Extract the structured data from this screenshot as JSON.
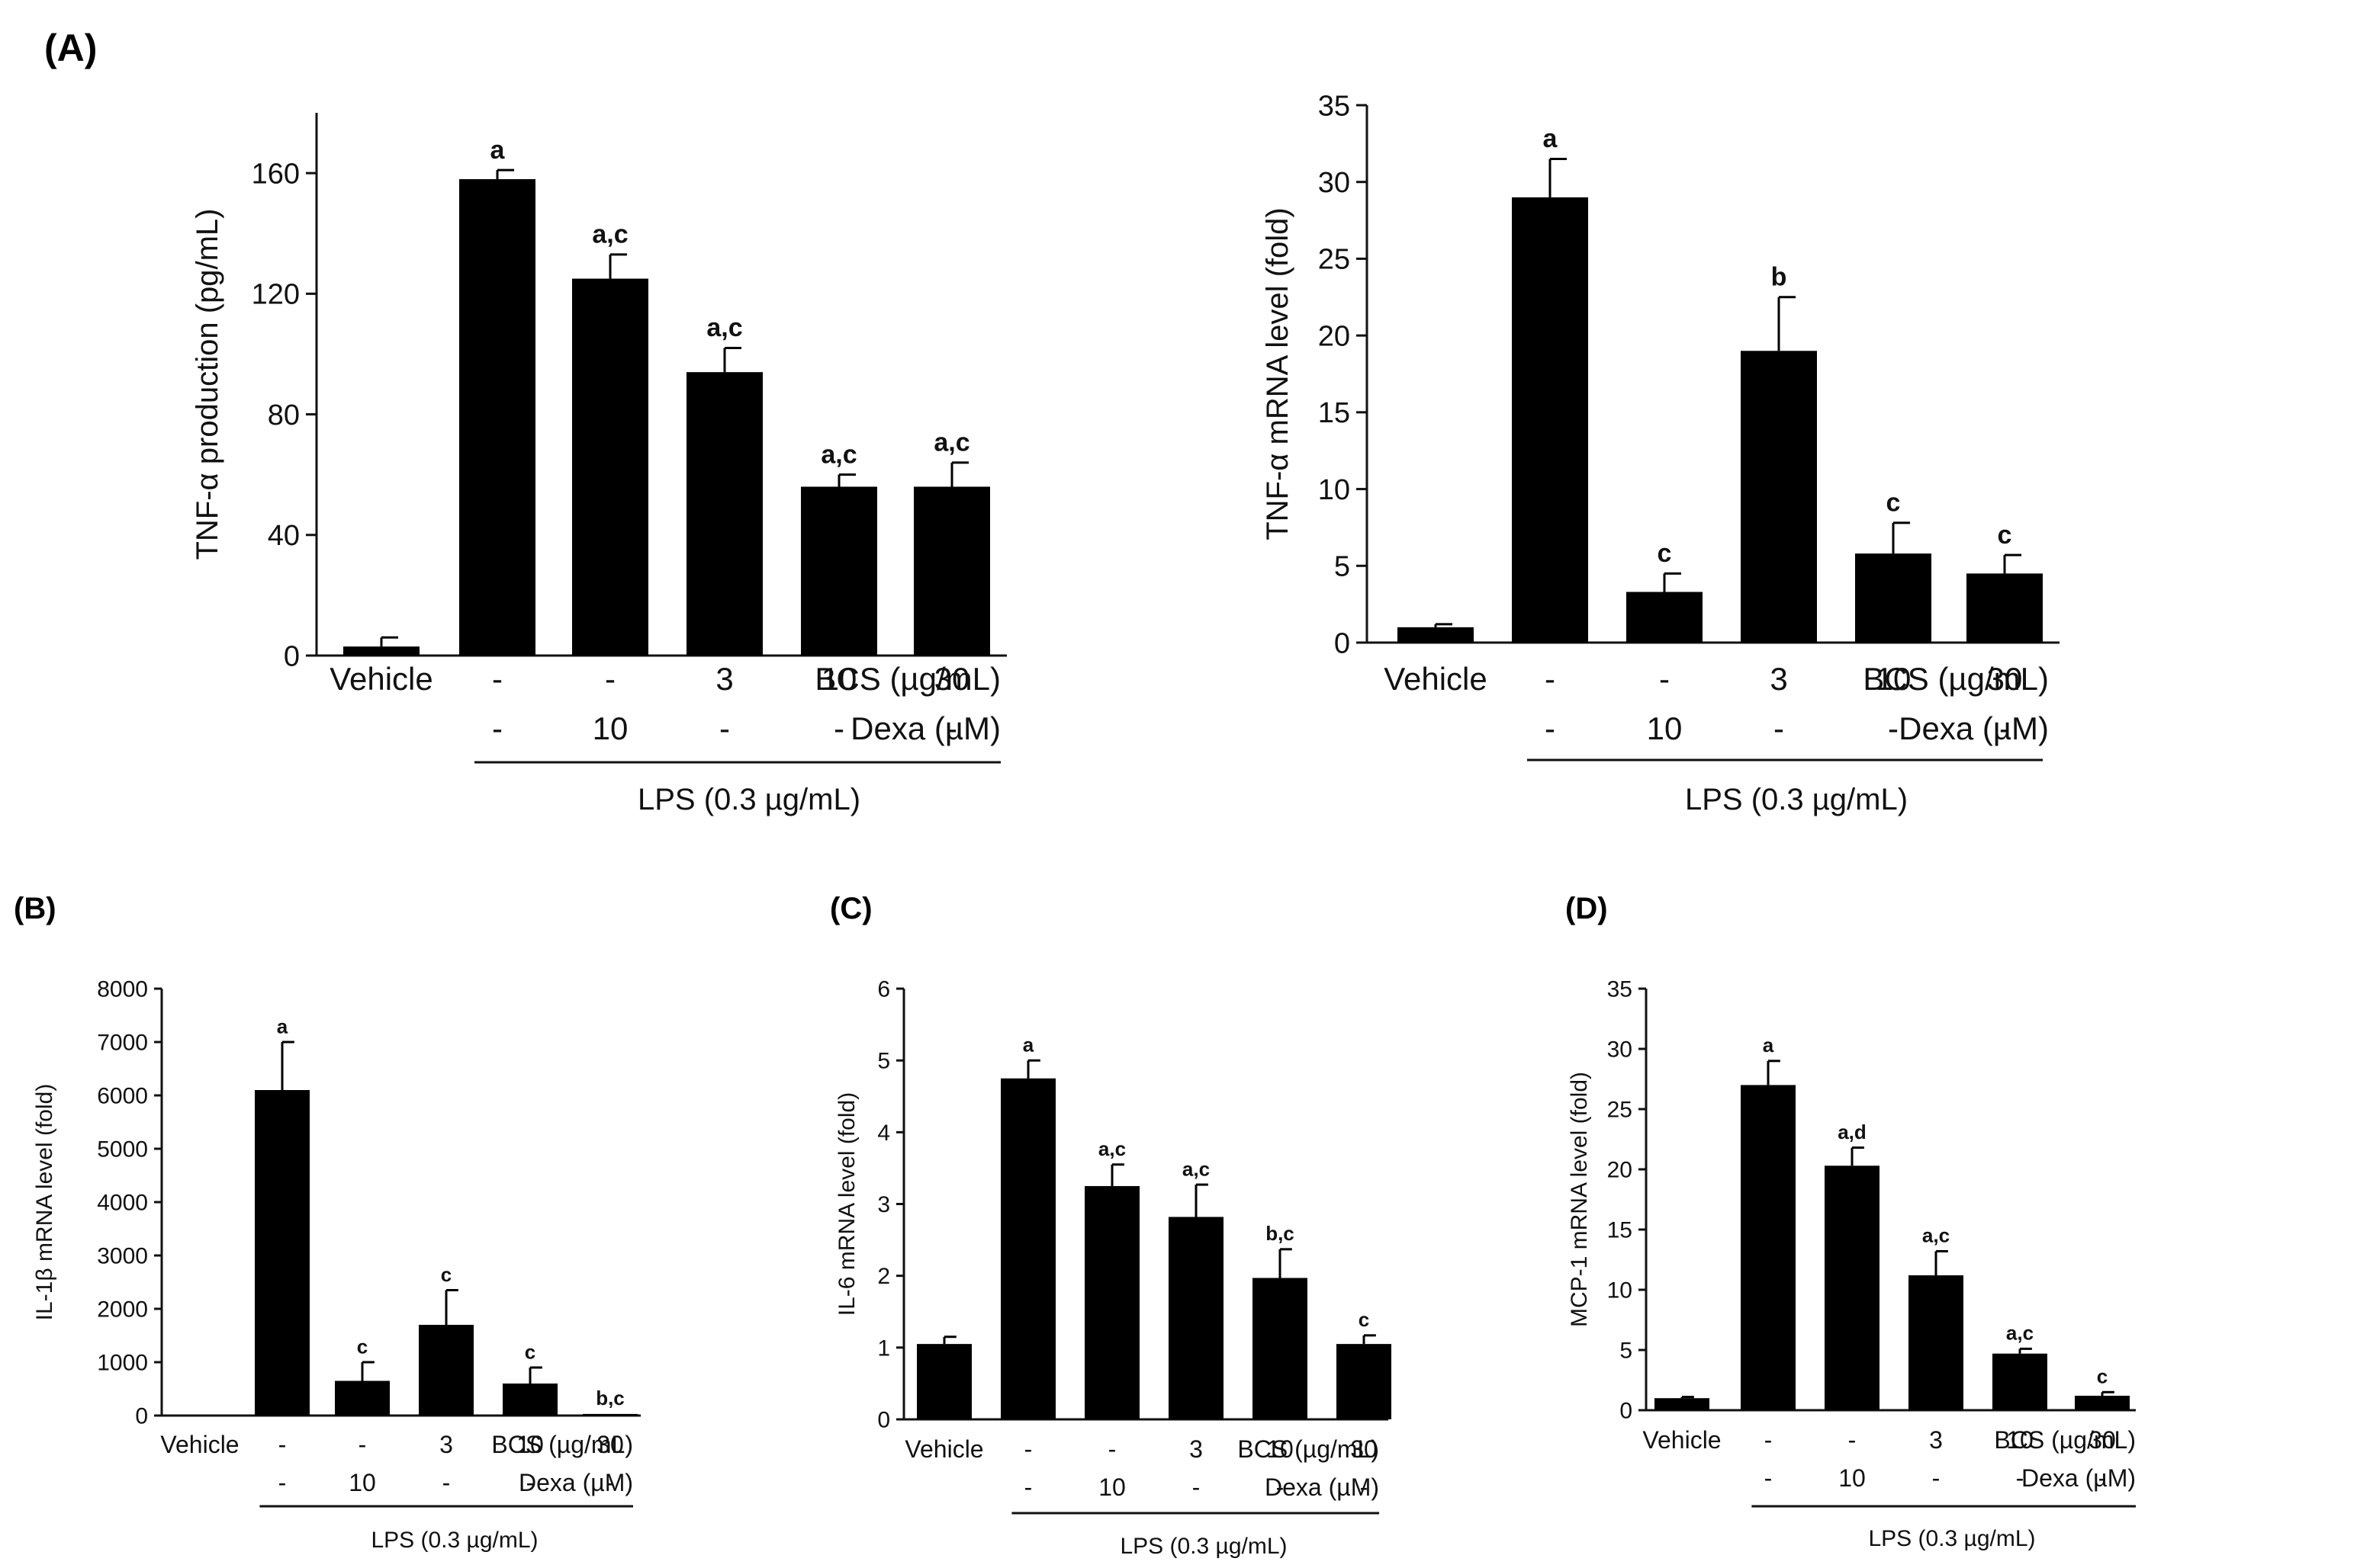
{
  "figure_labels": {
    "A": "(A)",
    "B": "(B)",
    "C": "(C)",
    "D": "(D)"
  },
  "chart_data": [
    {
      "id": "A1",
      "panel": "(A)",
      "type": "bar",
      "ylabel": "TNF-α production (pg/mL)",
      "ylim": [
        0,
        180
      ],
      "yticks": [
        0,
        40,
        80,
        120,
        160
      ],
      "categories": [
        "Vehicle",
        "-",
        "-",
        "3",
        "10",
        "30"
      ],
      "values": [
        3,
        158,
        125,
        94,
        56,
        56
      ],
      "errors": [
        3,
        3,
        8,
        8,
        4,
        8
      ],
      "sig_labels": [
        "",
        "a",
        "a,c",
        "a,c",
        "a,c",
        "a,c"
      ],
      "row1_suffix": "BCS (µg/mL)",
      "row2": [
        "",
        "-",
        "10",
        "-",
        "-",
        "-"
      ],
      "row2_suffix": "Dexa (µM)",
      "lps_label": "LPS (0.3 µg/mL)"
    },
    {
      "id": "A2",
      "panel": "(A)",
      "type": "bar",
      "ylabel": "TNF-α mRNA level (fold)",
      "ylim": [
        0,
        35
      ],
      "yticks": [
        0,
        5,
        10,
        15,
        20,
        25,
        30,
        35
      ],
      "categories": [
        "Vehicle",
        "-",
        "-",
        "3",
        "10",
        "30"
      ],
      "values": [
        1,
        29,
        3.3,
        19,
        5.8,
        4.5
      ],
      "errors": [
        0.2,
        2.5,
        1.2,
        3.5,
        2.0,
        1.2
      ],
      "sig_labels": [
        "",
        "a",
        "c",
        "b",
        "c",
        "c"
      ],
      "row1_suffix": "BCS (µg/mL)",
      "row2": [
        "",
        "-",
        "10",
        "-",
        "-",
        "-"
      ],
      "row2_suffix": "Dexa (µM)",
      "lps_label": "LPS (0.3 µg/mL)"
    },
    {
      "id": "B",
      "panel": "(B)",
      "type": "bar",
      "ylabel": "IL-1β mRNA level (fold)",
      "ylim": [
        0,
        8000
      ],
      "yticks": [
        0,
        1000,
        2000,
        3000,
        4000,
        5000,
        6000,
        7000,
        8000
      ],
      "categories": [
        "Vehicle",
        "-",
        "-",
        "3",
        "10",
        "30"
      ],
      "values": [
        0,
        6100,
        650,
        1700,
        600,
        30
      ],
      "errors": [
        0,
        900,
        350,
        650,
        300,
        0
      ],
      "sig_labels": [
        "",
        "a",
        "c",
        "c",
        "c",
        "b,c"
      ],
      "row1_suffix": "BCS (µg/mL)",
      "row2": [
        "",
        "-",
        "10",
        "-",
        "-",
        "-"
      ],
      "row2_suffix": "Dexa (µM)",
      "lps_label": "LPS (0.3 µg/mL)"
    },
    {
      "id": "C",
      "panel": "(C)",
      "type": "bar",
      "ylabel": "IL-6 mRNA level (fold)",
      "ylim": [
        0,
        6
      ],
      "yticks": [
        0,
        1,
        2,
        3,
        4,
        5,
        6
      ],
      "categories": [
        "Vehicle",
        "-",
        "-",
        "3",
        "10",
        "30"
      ],
      "values": [
        1.05,
        4.75,
        3.25,
        2.82,
        1.97,
        1.05
      ],
      "errors": [
        0.1,
        0.25,
        0.3,
        0.45,
        0.4,
        0.12
      ],
      "sig_labels": [
        "",
        "a",
        "a,c",
        "a,c",
        "b,c",
        "c"
      ],
      "row1_suffix": "BCS (µg/mL)",
      "row2": [
        "",
        "-",
        "10",
        "-",
        "-",
        "-"
      ],
      "row2_suffix": "Dexa (µM)",
      "lps_label": "LPS (0.3 µg/mL)"
    },
    {
      "id": "D",
      "panel": "(D)",
      "type": "bar",
      "ylabel": "MCP-1 mRNA level (fold)",
      "ylim": [
        0,
        35
      ],
      "yticks": [
        0,
        5,
        10,
        15,
        20,
        25,
        30,
        35
      ],
      "categories": [
        "Vehicle",
        "-",
        "-",
        "3",
        "10",
        "30"
      ],
      "values": [
        1,
        27,
        20.3,
        11.2,
        4.7,
        1.2
      ],
      "errors": [
        0.1,
        2.0,
        1.5,
        2.0,
        0.4,
        0.3
      ],
      "sig_labels": [
        "",
        "a",
        "a,d",
        "a,c",
        "a,c",
        "c"
      ],
      "row1_suffix": "BCS (µg/mL)",
      "row2": [
        "",
        "-",
        "10",
        "-",
        "-",
        "-"
      ],
      "row2_suffix": "Dexa (µM)",
      "lps_label": "LPS (0.3 µg/mL)"
    }
  ]
}
